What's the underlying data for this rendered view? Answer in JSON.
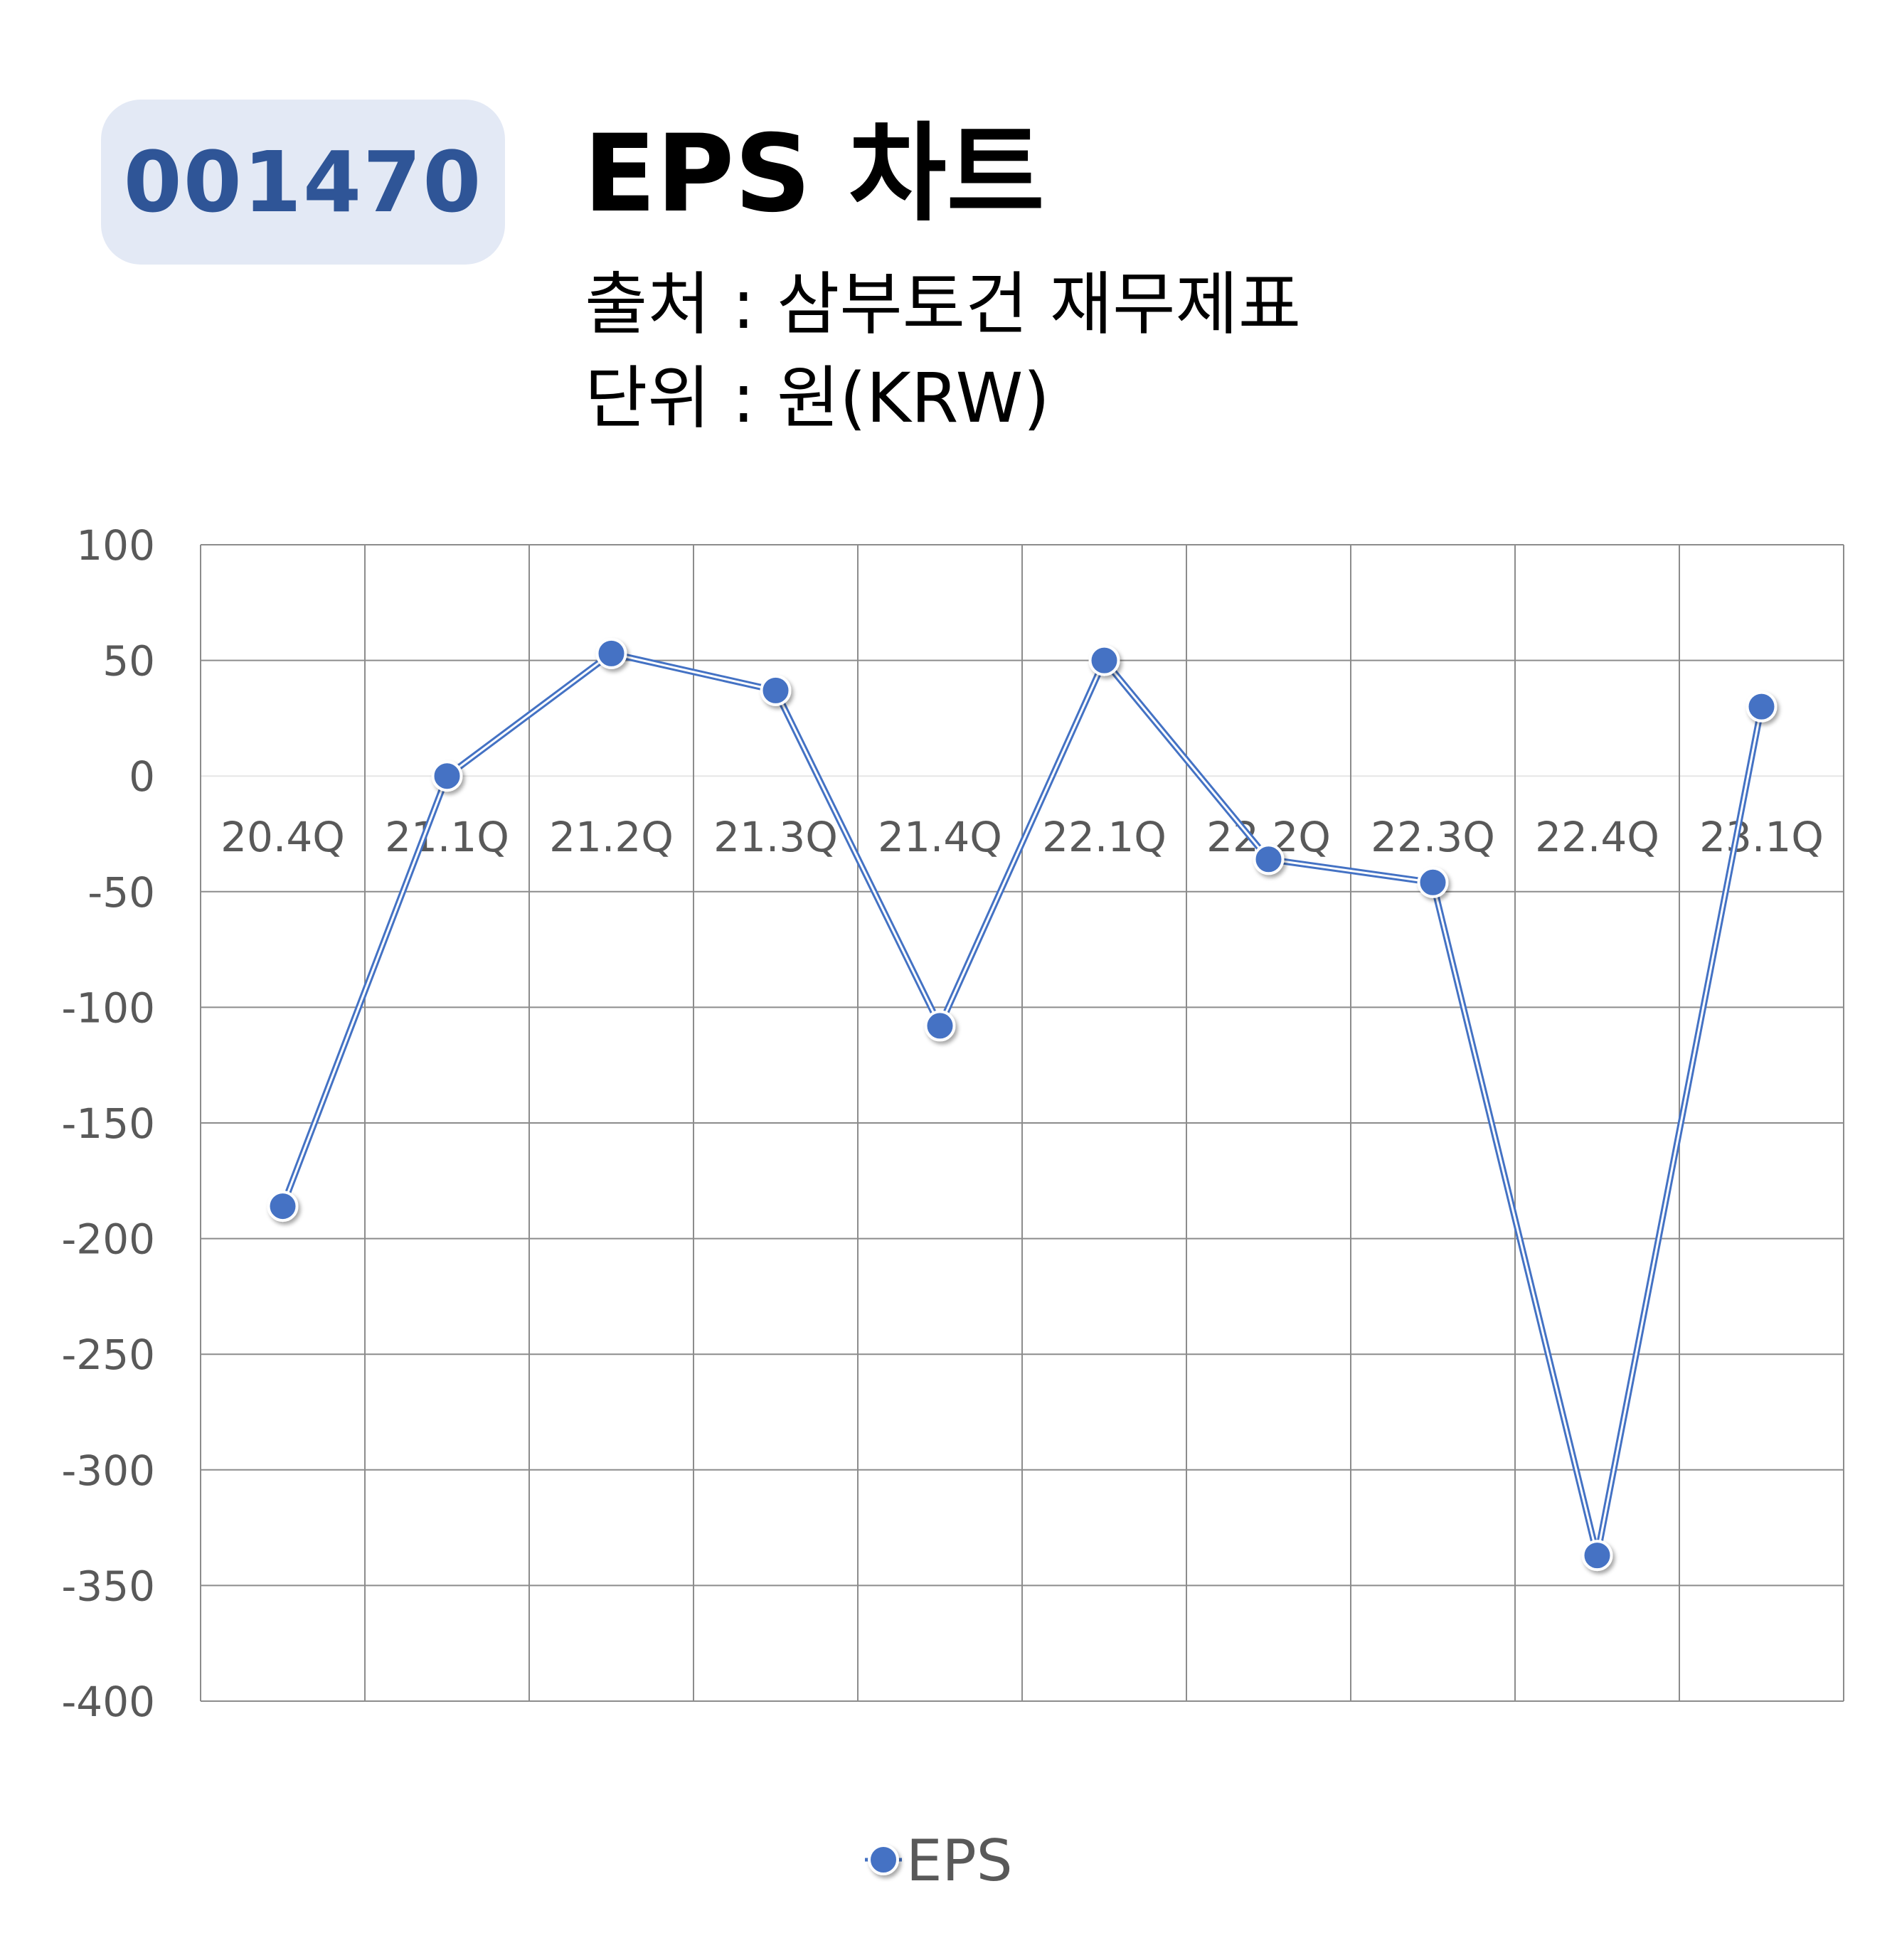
{
  "header": {
    "ticker": "001470",
    "title": "EPS 차트",
    "source": "출처 : 삼부토건 재무제표",
    "unit": "단위 : 원(KRW)"
  },
  "colors": {
    "series": "#4472c4",
    "badge_bg": "#e3e9f5",
    "badge_text": "#2f5597",
    "grid": "#8c8c8c",
    "tick_text": "#595959"
  },
  "chart_data": {
    "type": "line",
    "categories": [
      "20.4Q",
      "21.1Q",
      "21.2Q",
      "21.3Q",
      "21.4Q",
      "22.1Q",
      "22.2Q",
      "22.3Q",
      "22.4Q",
      "23.1Q"
    ],
    "series": [
      {
        "name": "EPS",
        "values": [
          -186,
          0,
          53,
          37,
          -108,
          50,
          -36,
          -46,
          -337,
          30
        ]
      }
    ],
    "y_ticks": [
      100,
      50,
      0,
      -50,
      -100,
      -150,
      -200,
      -250,
      -300,
      -350,
      -400
    ],
    "ylim": [
      -400,
      100
    ],
    "grid": true,
    "legend": "bottom-center",
    "legend_entry": "EPS"
  }
}
